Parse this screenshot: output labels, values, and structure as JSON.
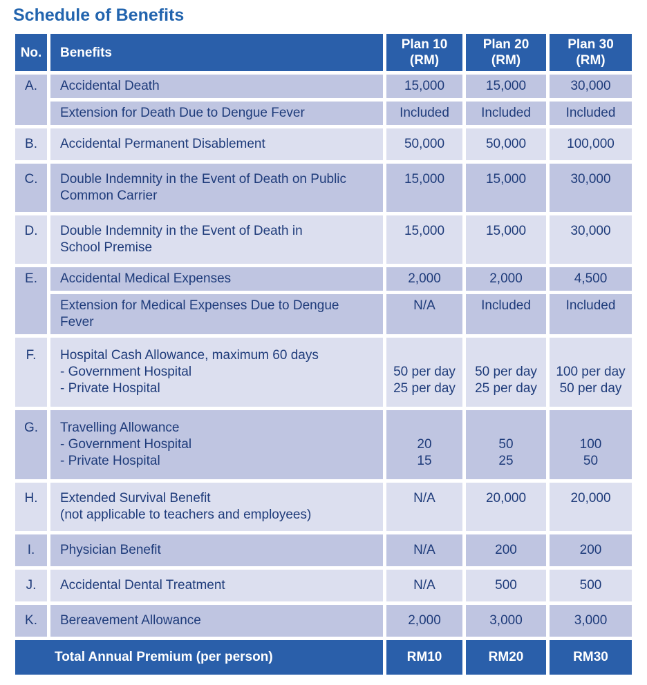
{
  "page": {
    "title": "Schedule of Benefits"
  },
  "colors": {
    "header_bg": "#2A5FAA",
    "row_dark": "#BFC5E1",
    "row_light": "#DCDFEF",
    "text_navy": "#1E3B7A",
    "title_blue": "#2264AE",
    "total_bg": "#2A5FAA",
    "separator": "#FFFFFF"
  },
  "table": {
    "headers": {
      "no": "No.",
      "benefits": "Benefits",
      "plan10": "Plan 10\n(RM)",
      "plan20": "Plan 20\n(RM)",
      "plan30": "Plan 30\n(RM)"
    },
    "rows": [
      {
        "no": "A.",
        "shade": "dark",
        "sub_rows": [
          {
            "benefit": "Accidental Death",
            "plan10": "15,000",
            "plan20": "15,000",
            "plan30": "30,000"
          },
          {
            "benefit": "Extension for Death Due to Dengue Fever",
            "plan10": "Included",
            "plan20": "Included",
            "plan30": "Included"
          }
        ]
      },
      {
        "no": "B.",
        "shade": "light",
        "sub_rows": [
          {
            "benefit": "Accidental Permanent Disablement",
            "plan10": "50,000",
            "plan20": "50,000",
            "plan30": "100,000"
          }
        ]
      },
      {
        "no": "C.",
        "shade": "dark",
        "sub_rows": [
          {
            "benefit": "Double Indemnity in the Event of Death on Public\nCommon Carrier",
            "plan10": "15,000",
            "plan20": "15,000",
            "plan30": "30,000"
          }
        ]
      },
      {
        "no": "D.",
        "shade": "light",
        "sub_rows": [
          {
            "benefit": "Double Indemnity in the Event of Death in\nSchool Premise",
            "plan10": "15,000",
            "plan20": "15,000",
            "plan30": "30,000"
          }
        ]
      },
      {
        "no": "E.",
        "shade": "dark",
        "sub_rows": [
          {
            "benefit": "Accidental Medical Expenses",
            "plan10": "2,000",
            "plan20": "2,000",
            "plan30": "4,500"
          },
          {
            "benefit": "Extension for Medical Expenses Due to Dengue Fever",
            "plan10": "N/A",
            "plan20": "Included",
            "plan30": "Included"
          }
        ]
      },
      {
        "no": "F.",
        "shade": "light",
        "sub_rows": [
          {
            "benefit": "Hospital Cash Allowance, maximum 60 days\n- Government Hospital\n- Private Hospital",
            "plan10": "\n50 per day\n25 per day",
            "plan20": "\n50 per day\n25 per day",
            "plan30": "\n100 per day\n50 per day"
          }
        ]
      },
      {
        "no": "G.",
        "shade": "dark",
        "sub_rows": [
          {
            "benefit": "Travelling Allowance\n- Government Hospital\n- Private Hospital",
            "plan10": "\n20\n15",
            "plan20": "\n50\n25",
            "plan30": "\n100\n50"
          }
        ]
      },
      {
        "no": "H.",
        "shade": "light",
        "sub_rows": [
          {
            "benefit": "Extended Survival Benefit\n(not applicable to teachers and employees)",
            "plan10": "N/A",
            "plan20": "20,000",
            "plan30": "20,000"
          }
        ]
      },
      {
        "no": "I.",
        "shade": "dark",
        "sub_rows": [
          {
            "benefit": "Physician Benefit",
            "plan10": "N/A",
            "plan20": "200",
            "plan30": "200"
          }
        ]
      },
      {
        "no": "J.",
        "shade": "light",
        "sub_rows": [
          {
            "benefit": "Accidental Dental Treatment",
            "plan10": "N/A",
            "plan20": "500",
            "plan30": "500"
          }
        ]
      },
      {
        "no": "K.",
        "shade": "dark",
        "sub_rows": [
          {
            "benefit": "Bereavement Allowance",
            "plan10": "2,000",
            "plan20": "3,000",
            "plan30": "3,000"
          }
        ]
      }
    ],
    "total_row": {
      "label": "Total Annual Premium (per person)",
      "plan10": "RM10",
      "plan20": "RM20",
      "plan30": "RM30"
    }
  }
}
